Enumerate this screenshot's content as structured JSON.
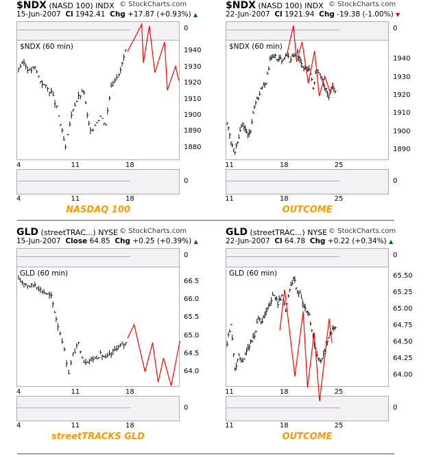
{
  "watermark": "© StockCharts.com",
  "colors": {
    "bars": "#000000",
    "projection": "#ff0000",
    "caption": "#ff9900",
    "up": "#006600",
    "down": "#cc0033"
  },
  "chart_data": [
    {
      "type": "bar",
      "symbol": "$NDX",
      "name": "(NASD 100)",
      "exchange": "INDX",
      "date": "15-Jun-2007",
      "close_label": "Cl",
      "close": "1942.41",
      "chg_label": "Chg",
      "chg": "+17.87 (+0.93%)",
      "direction": "up",
      "plot_label": "$NDX (60 min)",
      "caption": "NASDAQ 100",
      "top_indicator_tick": "0",
      "bottom_indicator_tick": "0",
      "xlim": [
        -0.19,
        14.78
      ],
      "ylim": [
        1872.7,
        1947.3
      ],
      "x_ticks": [
        {
          "day": 0,
          "label": "4"
        },
        {
          "day": 5,
          "label": "11"
        },
        {
          "day": 10,
          "label": "18"
        }
      ],
      "y_ticks": [
        "1880",
        "1890",
        "1900",
        "1910",
        "1920",
        "1930",
        "1940"
      ],
      "closes": [
        [
          0,
          1930
        ],
        [
          0.5,
          1933
        ],
        [
          1,
          1928
        ],
        [
          1.5,
          1930
        ],
        [
          2,
          1922
        ],
        [
          2.5,
          1918
        ],
        [
          3,
          1915
        ],
        [
          3.5,
          1905
        ],
        [
          4,
          1890
        ],
        [
          4.3,
          1880
        ],
        [
          4.7,
          1895
        ],
        [
          5,
          1905
        ],
        [
          5.5,
          1912
        ],
        [
          6,
          1915
        ],
        [
          6.3,
          1900
        ],
        [
          6.6,
          1890
        ],
        [
          7,
          1895
        ],
        [
          7.5,
          1900
        ],
        [
          8,
          1895
        ],
        [
          8.5,
          1920
        ],
        [
          9,
          1925
        ],
        [
          9.2,
          1925
        ],
        [
          9.8,
          1940
        ],
        [
          10,
          1941
        ]
      ],
      "projection": [
        [
          10,
          1940
        ],
        [
          11.3,
          1957
        ],
        [
          11.45,
          1933
        ],
        [
          12,
          1956
        ],
        [
          12.5,
          1927
        ],
        [
          13.4,
          1946
        ],
        [
          13.65,
          1916
        ],
        [
          14.4,
          1931
        ],
        [
          14.7,
          1922
        ]
      ]
    },
    {
      "type": "bar",
      "symbol": "$NDX",
      "name": "(NASD 100)",
      "exchange": "INDX",
      "date": "22-Jun-2007",
      "close_label": "Cl",
      "close": "1921.94",
      "chg_label": "Chg",
      "chg": "-19.38 (-1.00%)",
      "direction": "down",
      "plot_label": "$NDX (60 min)",
      "caption": "OUTCOME",
      "top_indicator_tick": "0",
      "bottom_indicator_tick": "0",
      "xlim": [
        -0.18,
        20.7
      ],
      "ylim": [
        1884.7,
        1951.1
      ],
      "x_ticks": [
        {
          "day": 0,
          "label": "11"
        },
        {
          "day": 7,
          "label": "18"
        },
        {
          "day": 14,
          "label": "25"
        }
      ],
      "y_ticks": [
        "1890",
        "1900",
        "1910",
        "1920",
        "1930",
        "1940"
      ],
      "closes": [
        [
          0,
          1905
        ],
        [
          0.5,
          1895
        ],
        [
          1,
          1890
        ],
        [
          1.5,
          1898
        ],
        [
          2,
          1905
        ],
        [
          2.5,
          1900
        ],
        [
          3,
          1900
        ],
        [
          3.5,
          1915
        ],
        [
          4,
          1920
        ],
        [
          4.5,
          1925
        ],
        [
          5,
          1928
        ],
        [
          5.5,
          1940
        ],
        [
          6,
          1942
        ],
        [
          7,
          1940
        ],
        [
          7.5,
          1943
        ],
        [
          8,
          1940
        ],
        [
          9,
          1944
        ],
        [
          9.5,
          1938
        ],
        [
          10,
          1935
        ],
        [
          10.5,
          1935
        ],
        [
          11,
          1925
        ],
        [
          11.5,
          1935
        ],
        [
          12,
          1930
        ],
        [
          12.5,
          1925
        ],
        [
          13,
          1920
        ],
        [
          13.5,
          1925
        ],
        [
          14,
          1923
        ]
      ],
      "projection": [
        [
          7.6,
          1942
        ],
        [
          8.5,
          1959
        ],
        [
          8.9,
          1939
        ],
        [
          9.6,
          1950
        ],
        [
          10.4,
          1927
        ],
        [
          11.2,
          1945
        ],
        [
          11.8,
          1920
        ],
        [
          12.5,
          1931
        ],
        [
          13.2,
          1922
        ],
        [
          13.6,
          1927
        ]
      ]
    },
    {
      "type": "bar",
      "symbol": "GLD",
      "name": "(streetTRAC...)",
      "exchange": "NYSE",
      "date": "15-Jun-2007",
      "close_label": "Close",
      "close": "64.85",
      "chg_label": "Chg",
      "chg": "+0.25 (+0.39%)",
      "direction": "up",
      "plot_label": "GLD (60 min)",
      "caption": "streetTRACKS GLD",
      "top_indicator_tick": "0",
      "bottom_indicator_tick": "0",
      "xlim": [
        -0.19,
        14.78
      ],
      "ylim": [
        63.6,
        66.94
      ],
      "x_ticks": [
        {
          "day": 0,
          "label": "4"
        },
        {
          "day": 5,
          "label": "11"
        },
        {
          "day": 10,
          "label": "18"
        }
      ],
      "y_ticks": [
        "64.0",
        "64.5",
        "65.0",
        "65.5",
        "66.0",
        "66.5"
      ],
      "closes": [
        [
          0,
          66.55
        ],
        [
          0.5,
          66.5
        ],
        [
          1,
          66.4
        ],
        [
          1.5,
          66.45
        ],
        [
          2,
          66.3
        ],
        [
          2.5,
          66.2
        ],
        [
          3,
          66.1
        ],
        [
          3.3,
          65.7
        ],
        [
          3.6,
          65.3
        ],
        [
          4,
          64.9
        ],
        [
          4.4,
          64.3
        ],
        [
          4.6,
          64.0
        ],
        [
          5,
          64.5
        ],
        [
          5.5,
          64.8
        ],
        [
          6,
          64.3
        ],
        [
          6.5,
          64.35
        ],
        [
          7,
          64.4
        ],
        [
          7.5,
          64.5
        ],
        [
          8,
          64.4
        ],
        [
          8.5,
          64.5
        ],
        [
          9,
          64.7
        ],
        [
          9.5,
          64.75
        ],
        [
          10,
          64.85
        ]
      ],
      "projection": [
        [
          10,
          64.95
        ],
        [
          10.6,
          65.33
        ],
        [
          11.6,
          64.02
        ],
        [
          12.3,
          64.83
        ],
        [
          12.8,
          63.73
        ],
        [
          13.3,
          64.4
        ],
        [
          14.0,
          63.63
        ],
        [
          14.8,
          64.88
        ]
      ]
    },
    {
      "type": "bar",
      "symbol": "GLD",
      "name": "(streetTRAC...)",
      "exchange": "NYSE",
      "date": "22-Jun-2007",
      "close_label": "Cl",
      "close": "64.78",
      "chg_label": "Chg",
      "chg": "+0.22 (+0.34%)",
      "direction": "up",
      "plot_label": "GLD (60 min)",
      "caption": "OUTCOME",
      "top_indicator_tick": "0",
      "bottom_indicator_tick": "0",
      "xlim": [
        -0.18,
        20.7
      ],
      "ylim": [
        63.83,
        65.66
      ],
      "x_ticks": [
        {
          "day": 0,
          "label": "11"
        },
        {
          "day": 7,
          "label": "18"
        },
        {
          "day": 14,
          "label": "25"
        }
      ],
      "y_ticks": [
        "64.00",
        "64.25",
        "64.50",
        "64.75",
        "65.00",
        "65.25",
        "65.50"
      ],
      "closes": [
        [
          0,
          64.5
        ],
        [
          0.5,
          64.8
        ],
        [
          1,
          64.1
        ],
        [
          1.5,
          64.3
        ],
        [
          2,
          64.2
        ],
        [
          2.5,
          64.4
        ],
        [
          3,
          64.5
        ],
        [
          3.5,
          64.6
        ],
        [
          4,
          64.9
        ],
        [
          4.5,
          64.8
        ],
        [
          5,
          65.0
        ],
        [
          5.5,
          65.1
        ],
        [
          6,
          65.25
        ],
        [
          6.5,
          65.1
        ],
        [
          7,
          65.2
        ],
        [
          7.5,
          65.0
        ],
        [
          8,
          65.3
        ],
        [
          8.5,
          65.5
        ],
        [
          9,
          65.3
        ],
        [
          9.5,
          65.2
        ],
        [
          10,
          65.0
        ],
        [
          10.5,
          64.9
        ],
        [
          11,
          64.6
        ],
        [
          11.5,
          64.3
        ],
        [
          12,
          64.2
        ],
        [
          12.5,
          64.4
        ],
        [
          13,
          64.6
        ],
        [
          13.5,
          64.7
        ],
        [
          14,
          64.78
        ]
      ],
      "projection": [
        [
          6.75,
          64.69
        ],
        [
          7.37,
          65.31
        ],
        [
          8.68,
          63.99
        ],
        [
          9.74,
          64.98
        ],
        [
          10.3,
          63.82
        ],
        [
          11.14,
          64.66
        ],
        [
          11.84,
          63.61
        ],
        [
          13.07,
          64.87
        ],
        [
          13.42,
          64.5
        ]
      ]
    }
  ]
}
